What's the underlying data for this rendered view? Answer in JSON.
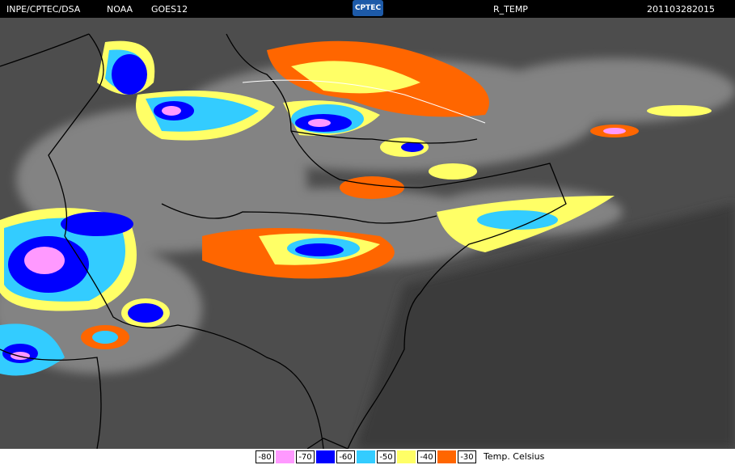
{
  "header": {
    "source": "INPE/CPTEC/DSA",
    "agency": "NOAA",
    "satellite": "GOES12",
    "logo": "CPTEC",
    "product": "R_TEMP",
    "timestamp": "201103282015"
  },
  "legend": {
    "items": [
      {
        "label": "-80",
        "color": "#ff99ff"
      },
      {
        "label": "-70",
        "color": "#0000ff"
      },
      {
        "label": "-60",
        "color": "#33ccff"
      },
      {
        "label": "-50",
        "color": "#ffff66"
      },
      {
        "label": "-40",
        "color": "#ff6600"
      },
      {
        "label": "-30",
        "color": null
      }
    ],
    "unit": "Temp. Celsius"
  }
}
